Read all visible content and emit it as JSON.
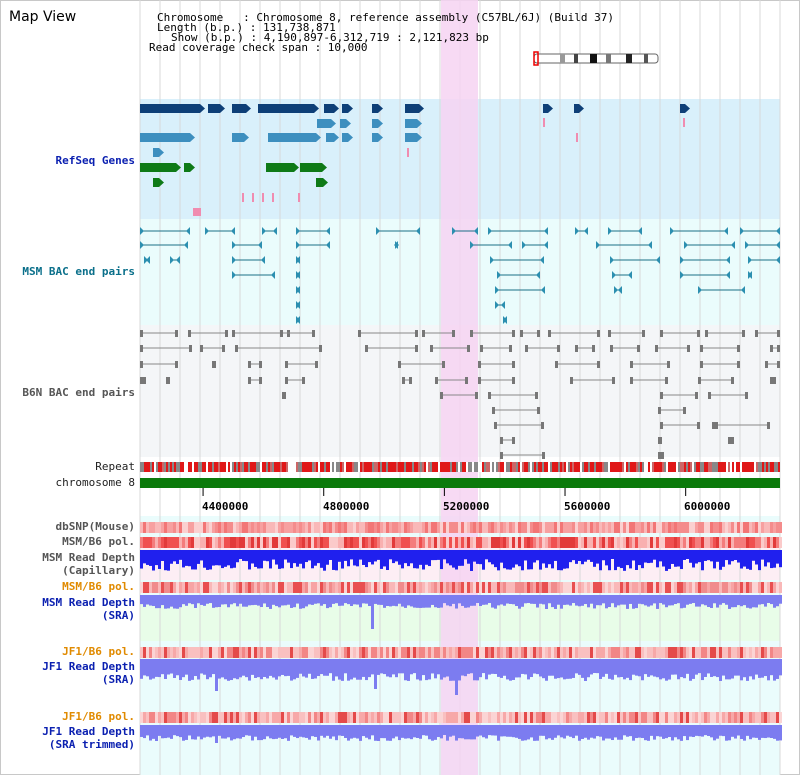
{
  "page": {
    "title": "Map View",
    "info": {
      "chromosome": "Chromosome   : Chromosome 8, reference assembly (C57BL/6J) (Build 37)",
      "length": "Length (b.p.) : 131,738,871",
      "show": "Show (b.p.) : 4,190,897-6,312,719 : 2,121,823 bp",
      "coverage": "Read coverage check span : 10,000"
    }
  },
  "tracks": {
    "refseq": "RefSeq Genes",
    "msm_bac": "MSM BAC end pairs",
    "b6n_bac": "B6N BAC end pairs",
    "repeat": "Repeat",
    "chrom": "chromosome 8",
    "dbsnp": "dbSNP(Mouse)",
    "msm_b6_pol_1": "MSM/B6 pol.",
    "msm_depth_cap_1": "MSM Read Depth",
    "msm_depth_cap_2": "(Capillary)",
    "msm_b6_pol_2": "MSM/B6 pol.",
    "msm_depth_sra_1": "MSM Read Depth",
    "msm_depth_sra_2": "(SRA)",
    "jf1_pol_1": "JF1/B6 pol.",
    "jf1_depth_1": "JF1 Read Depth",
    "jf1_depth_2": "(SRA)",
    "jf1_pol_2": "JF1/B6 pol.",
    "jf1_trim_1": "JF1 Read Depth",
    "jf1_trim_2": "(SRA trimmed)"
  },
  "axis": {
    "ticks": [
      "4400000",
      "4800000",
      "5200000",
      "5600000",
      "6000000"
    ],
    "tick_values": [
      4400000,
      4800000,
      5200000,
      5600000,
      6000000
    ],
    "range": [
      4190897,
      6312719
    ]
  },
  "colors": {
    "highlight": "#f6d4f2",
    "refseq_bg": "#d9f0fb",
    "bac_bg": "#eafcfc",
    "b6n_bg": "#f4f6f8",
    "chrom_bar": "#0b7a0b",
    "gene_dark": "#0e3f77",
    "gene_mid": "#3d8fbf",
    "gene_green": "#0e7a17",
    "depth_blue": "#2020ee",
    "depth_light": "#7c7cf0"
  }
}
